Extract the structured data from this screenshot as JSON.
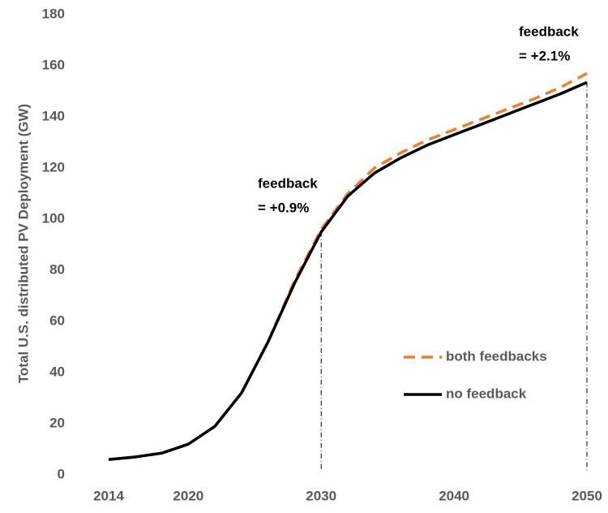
{
  "chart_data": {
    "type": "line",
    "y_label": "Total U.S. distributed PV Deployment (GW)",
    "x": [
      2014,
      2016,
      2018,
      2020,
      2022,
      2024,
      2026,
      2028,
      2030,
      2032,
      2034,
      2036,
      2038,
      2040,
      2042,
      2044,
      2046,
      2048,
      2050
    ],
    "series": [
      {
        "name": "both feedbacks",
        "color": "#ed7d31",
        "dashed": true,
        "values": [
          6,
          7,
          8.5,
          12,
          19,
          32,
          52,
          76,
          96,
          110,
          120,
          126,
          131,
          135,
          139,
          143,
          147,
          151.5,
          157
        ]
      },
      {
        "name": "no feedback",
        "color": "#000000",
        "dashed": false,
        "values": [
          6,
          7,
          8.5,
          12,
          19,
          32,
          52,
          75,
          95,
          109,
          118,
          124,
          129,
          133,
          137,
          141,
          145,
          149,
          153.5
        ]
      }
    ],
    "xlim": [
      2014,
      2050
    ],
    "ylim": [
      0,
      180
    ],
    "xticks": [
      2014,
      2020,
      2030,
      2040,
      2050
    ],
    "yticks": [
      0,
      20,
      40,
      60,
      80,
      100,
      120,
      140,
      160,
      180
    ],
    "vlines": [
      2030,
      2050
    ],
    "annotations": [
      {
        "lines": [
          "feedback",
          "= +0.9%"
        ]
      },
      {
        "lines": [
          "feedback",
          "= +2.1%"
        ]
      }
    ],
    "legend": "lower right"
  }
}
